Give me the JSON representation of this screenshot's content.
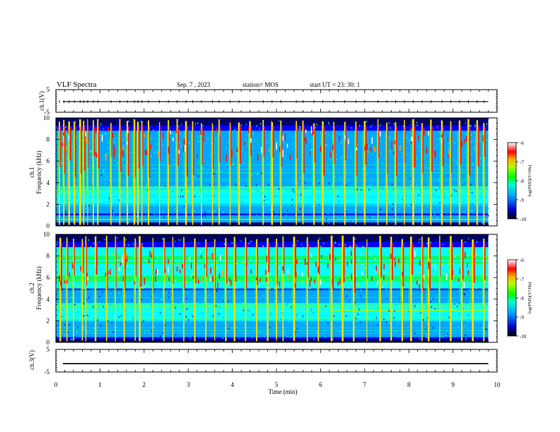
{
  "header": {
    "title": "VLF Spectra",
    "date": "Sep. 7 , 2023",
    "station": "station= MOS",
    "start": "start  UT =   23: 30: 1"
  },
  "chart_data": [
    {
      "type": "line",
      "panel": "ch1-waveform",
      "ylabel": "ch.1(V)",
      "ylim": [
        -5,
        5
      ],
      "yticks": [
        5,
        -5
      ],
      "xlim": [
        0,
        10
      ],
      "series": [
        {
          "values": [
            -0.3,
            -0.3
          ]
        }
      ]
    },
    {
      "type": "heatmap",
      "panel": "ch1-spectrogram",
      "ylabel": "ch.1",
      "ylabel2": "Frequency (kHz)",
      "ylim": [
        0,
        10
      ],
      "yticks": [
        0,
        2,
        4,
        6,
        8,
        10
      ],
      "xlim": [
        0,
        10
      ],
      "data_end_min": 9.8,
      "colorbar": {
        "label": "log(PSD)(V²/Hz)",
        "range": [
          -10,
          -6
        ],
        "ticks": [
          -6,
          -7,
          -8,
          -9,
          -10
        ]
      },
      "sferic_times_min": [
        0.08,
        0.18,
        0.3,
        0.42,
        0.55,
        0.63,
        0.72,
        0.85,
        0.95,
        1.25,
        1.45,
        1.62,
        1.78,
        1.86,
        1.95,
        2.1,
        2.35,
        2.55,
        2.75,
        2.95,
        3.1,
        3.3,
        3.55,
        3.7,
        3.95,
        4.15,
        4.4,
        4.7,
        4.9,
        5.1,
        5.45,
        5.6,
        5.85,
        6.05,
        6.3,
        6.55,
        6.8,
        7.0,
        7.3,
        7.5,
        7.7,
        7.9,
        8.1,
        8.3,
        8.5,
        8.75,
        8.95,
        9.15,
        9.35,
        9.55,
        9.7
      ]
    },
    {
      "type": "heatmap",
      "panel": "ch2-spectrogram",
      "ylabel": "ch.2",
      "ylabel2": "Frequency (kHz)",
      "ylim": [
        0,
        10
      ],
      "yticks": [
        0,
        2,
        4,
        6,
        8,
        10
      ],
      "xlim": [
        0,
        10
      ],
      "data_end_min": 9.8,
      "colorbar": {
        "label": "log(PSD)(V²/Hz)",
        "range": [
          -10,
          -6
        ],
        "ticks": [
          -6,
          -7,
          -8,
          -9,
          -10
        ]
      },
      "sferic_times_min": [
        0.1,
        0.25,
        0.4,
        0.6,
        0.68,
        0.9,
        1.15,
        1.35,
        1.55,
        1.8,
        1.9,
        2.2,
        2.45,
        2.65,
        2.9,
        3.15,
        3.4,
        3.6,
        3.85,
        4.05,
        4.3,
        4.55,
        4.8,
        5.0,
        5.15,
        5.4,
        5.7,
        5.95,
        6.25,
        6.5,
        6.75,
        7.05,
        7.35,
        7.6,
        7.85,
        8.05,
        8.3,
        8.45,
        8.7,
        8.95,
        9.2,
        9.45,
        9.7
      ]
    },
    {
      "type": "line",
      "panel": "ch3-waveform",
      "ylabel": "ch.3(V)",
      "ylim": [
        -5,
        5
      ],
      "yticks": [
        5,
        -5
      ],
      "xlim": [
        0,
        10
      ],
      "xlabel": "Time  (min)",
      "xticks": [
        0,
        1,
        2,
        3,
        4,
        5,
        6,
        7,
        8,
        9,
        10
      ],
      "series": [
        {
          "values": [
            -1.3,
            -1.3
          ]
        }
      ]
    }
  ],
  "colors": {
    "colormap": [
      "#000066",
      "#0000ff",
      "#00a8ff",
      "#00ffff",
      "#00ff60",
      "#a0ff00",
      "#ffff00",
      "#ff9000",
      "#ff0000",
      "#ffffff"
    ]
  }
}
